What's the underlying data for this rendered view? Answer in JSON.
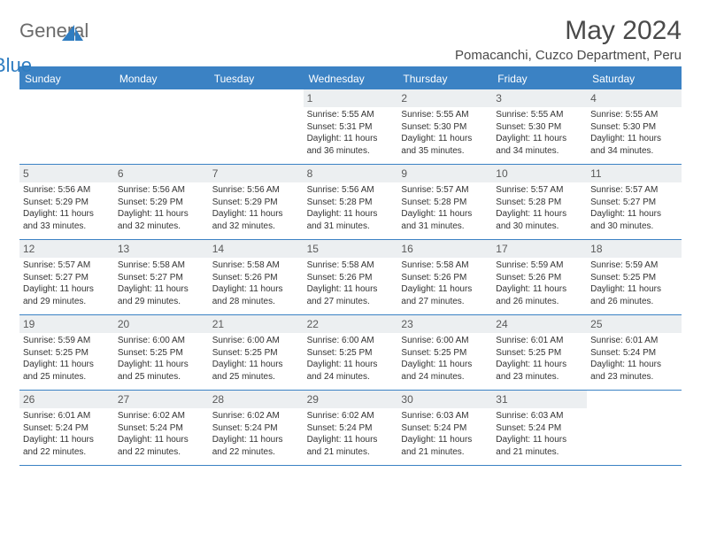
{
  "logo": {
    "general": "General",
    "blue": "Blue"
  },
  "title": "May 2024",
  "location": "Pomacanchi, Cuzco Department, Peru",
  "colors": {
    "header_bg": "#3b82c4",
    "header_text": "#ffffff",
    "daynum_bg": "#eceff1",
    "border": "#3b82c4",
    "title_color": "#4a4a4a",
    "body_text": "#333333"
  },
  "typography": {
    "title_fontsize": 30,
    "location_fontsize": 15,
    "dayhead_fontsize": 12,
    "daynum_fontsize": 12,
    "info_fontsize": 10
  },
  "day_names": [
    "Sunday",
    "Monday",
    "Tuesday",
    "Wednesday",
    "Thursday",
    "Friday",
    "Saturday"
  ],
  "labels": {
    "sunrise": "Sunrise: ",
    "sunset": "Sunset: ",
    "daylight": "Daylight: "
  },
  "weeks": [
    [
      null,
      null,
      null,
      {
        "n": "1",
        "sr": "5:55 AM",
        "ss": "5:31 PM",
        "dl": "11 hours and 36 minutes."
      },
      {
        "n": "2",
        "sr": "5:55 AM",
        "ss": "5:30 PM",
        "dl": "11 hours and 35 minutes."
      },
      {
        "n": "3",
        "sr": "5:55 AM",
        "ss": "5:30 PM",
        "dl": "11 hours and 34 minutes."
      },
      {
        "n": "4",
        "sr": "5:55 AM",
        "ss": "5:30 PM",
        "dl": "11 hours and 34 minutes."
      }
    ],
    [
      {
        "n": "5",
        "sr": "5:56 AM",
        "ss": "5:29 PM",
        "dl": "11 hours and 33 minutes."
      },
      {
        "n": "6",
        "sr": "5:56 AM",
        "ss": "5:29 PM",
        "dl": "11 hours and 32 minutes."
      },
      {
        "n": "7",
        "sr": "5:56 AM",
        "ss": "5:29 PM",
        "dl": "11 hours and 32 minutes."
      },
      {
        "n": "8",
        "sr": "5:56 AM",
        "ss": "5:28 PM",
        "dl": "11 hours and 31 minutes."
      },
      {
        "n": "9",
        "sr": "5:57 AM",
        "ss": "5:28 PM",
        "dl": "11 hours and 31 minutes."
      },
      {
        "n": "10",
        "sr": "5:57 AM",
        "ss": "5:28 PM",
        "dl": "11 hours and 30 minutes."
      },
      {
        "n": "11",
        "sr": "5:57 AM",
        "ss": "5:27 PM",
        "dl": "11 hours and 30 minutes."
      }
    ],
    [
      {
        "n": "12",
        "sr": "5:57 AM",
        "ss": "5:27 PM",
        "dl": "11 hours and 29 minutes."
      },
      {
        "n": "13",
        "sr": "5:58 AM",
        "ss": "5:27 PM",
        "dl": "11 hours and 29 minutes."
      },
      {
        "n": "14",
        "sr": "5:58 AM",
        "ss": "5:26 PM",
        "dl": "11 hours and 28 minutes."
      },
      {
        "n": "15",
        "sr": "5:58 AM",
        "ss": "5:26 PM",
        "dl": "11 hours and 27 minutes."
      },
      {
        "n": "16",
        "sr": "5:58 AM",
        "ss": "5:26 PM",
        "dl": "11 hours and 27 minutes."
      },
      {
        "n": "17",
        "sr": "5:59 AM",
        "ss": "5:26 PM",
        "dl": "11 hours and 26 minutes."
      },
      {
        "n": "18",
        "sr": "5:59 AM",
        "ss": "5:25 PM",
        "dl": "11 hours and 26 minutes."
      }
    ],
    [
      {
        "n": "19",
        "sr": "5:59 AM",
        "ss": "5:25 PM",
        "dl": "11 hours and 25 minutes."
      },
      {
        "n": "20",
        "sr": "6:00 AM",
        "ss": "5:25 PM",
        "dl": "11 hours and 25 minutes."
      },
      {
        "n": "21",
        "sr": "6:00 AM",
        "ss": "5:25 PM",
        "dl": "11 hours and 25 minutes."
      },
      {
        "n": "22",
        "sr": "6:00 AM",
        "ss": "5:25 PM",
        "dl": "11 hours and 24 minutes."
      },
      {
        "n": "23",
        "sr": "6:00 AM",
        "ss": "5:25 PM",
        "dl": "11 hours and 24 minutes."
      },
      {
        "n": "24",
        "sr": "6:01 AM",
        "ss": "5:25 PM",
        "dl": "11 hours and 23 minutes."
      },
      {
        "n": "25",
        "sr": "6:01 AM",
        "ss": "5:24 PM",
        "dl": "11 hours and 23 minutes."
      }
    ],
    [
      {
        "n": "26",
        "sr": "6:01 AM",
        "ss": "5:24 PM",
        "dl": "11 hours and 22 minutes."
      },
      {
        "n": "27",
        "sr": "6:02 AM",
        "ss": "5:24 PM",
        "dl": "11 hours and 22 minutes."
      },
      {
        "n": "28",
        "sr": "6:02 AM",
        "ss": "5:24 PM",
        "dl": "11 hours and 22 minutes."
      },
      {
        "n": "29",
        "sr": "6:02 AM",
        "ss": "5:24 PM",
        "dl": "11 hours and 21 minutes."
      },
      {
        "n": "30",
        "sr": "6:03 AM",
        "ss": "5:24 PM",
        "dl": "11 hours and 21 minutes."
      },
      {
        "n": "31",
        "sr": "6:03 AM",
        "ss": "5:24 PM",
        "dl": "11 hours and 21 minutes."
      },
      null
    ]
  ]
}
